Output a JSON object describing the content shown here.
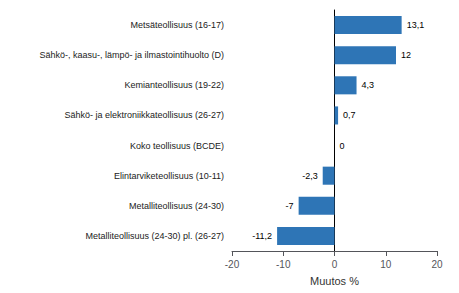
{
  "chart_data": {
    "type": "bar",
    "orientation": "horizontal",
    "categories": [
      "Metsäteollisuus (16-17)",
      "Sähkö-, kaasu-, lämpö- ja ilmastointihuolto (D)",
      "Kemianteollisuus (19-22)",
      "Sähkö- ja elektroniikkateollisuus (26-27)",
      "Koko teollisuus (BCDE)",
      "Elintarviketeollisuus (10-11)",
      "Metalliteollisuus (24-30)",
      "Metalliteollisuus (24-30) pl. (26-27)"
    ],
    "values": [
      13.1,
      12.0,
      4.3,
      0.7,
      0.0,
      -2.3,
      -7.0,
      -11.2
    ],
    "value_labels": [
      "13,1",
      "12",
      "4,3",
      "0,7",
      "0",
      "-2,3",
      "-7",
      "-11,2"
    ],
    "data_labels": true,
    "color": "#2E75B6",
    "xlabel": "Muutos %",
    "xlim": [
      -20,
      20
    ],
    "xticks": [
      -20,
      -10,
      0,
      10,
      20
    ],
    "grid": false
  }
}
